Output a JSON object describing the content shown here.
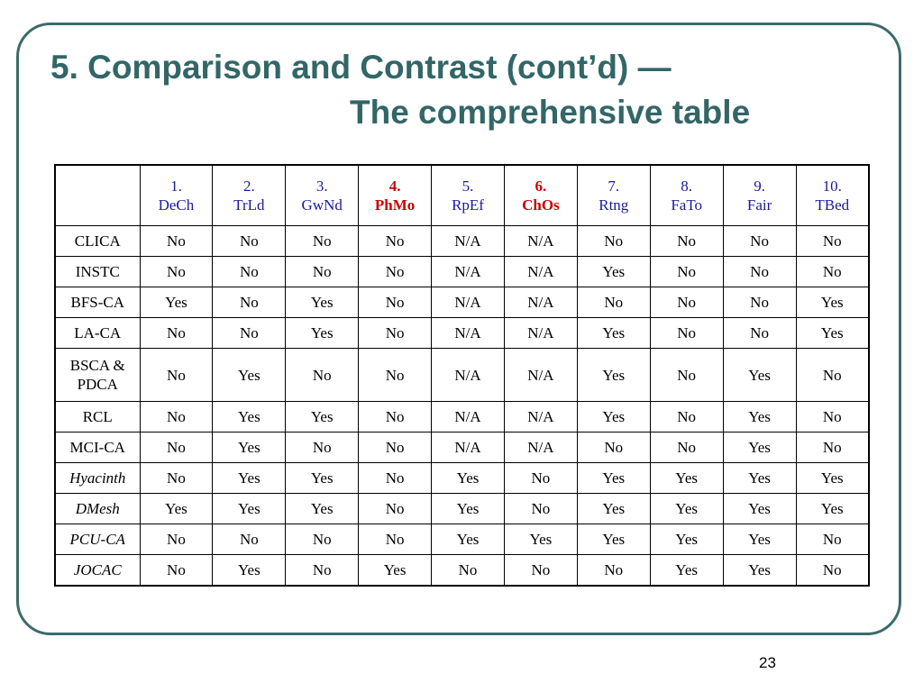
{
  "slide": {
    "title_line1": "5. Comparison and Contrast (cont’d) —",
    "title_line2": "The comprehensive table",
    "page_number": "23"
  },
  "table": {
    "headers": [
      {
        "num": "1.",
        "abbr": "DeCh",
        "highlight": false
      },
      {
        "num": "2.",
        "abbr": "TrLd",
        "highlight": false
      },
      {
        "num": "3.",
        "abbr": "GwNd",
        "highlight": false
      },
      {
        "num": "4.",
        "abbr": "PhMo",
        "highlight": true
      },
      {
        "num": "5.",
        "abbr": "RpEf",
        "highlight": false
      },
      {
        "num": "6.",
        "abbr": "ChOs",
        "highlight": true
      },
      {
        "num": "7.",
        "abbr": "Rtng",
        "highlight": false
      },
      {
        "num": "8.",
        "abbr": "FaTo",
        "highlight": false
      },
      {
        "num": "9.",
        "abbr": "Fair",
        "highlight": false
      },
      {
        "num": "10.",
        "abbr": "TBed",
        "highlight": false
      }
    ],
    "rows": [
      {
        "name": "CLICA",
        "italic": false,
        "values": [
          "No",
          "No",
          "No",
          "No",
          "N/A",
          "N/A",
          "No",
          "No",
          "No",
          "No"
        ]
      },
      {
        "name": "INSTC",
        "italic": false,
        "values": [
          "No",
          "No",
          "No",
          "No",
          "N/A",
          "N/A",
          "Yes",
          "No",
          "No",
          "No"
        ]
      },
      {
        "name": "BFS-CA",
        "italic": false,
        "values": [
          "Yes",
          "No",
          "Yes",
          "No",
          "N/A",
          "N/A",
          "No",
          "No",
          "No",
          "Yes"
        ]
      },
      {
        "name": "LA-CA",
        "italic": false,
        "values": [
          "No",
          "No",
          "Yes",
          "No",
          "N/A",
          "N/A",
          "Yes",
          "No",
          "No",
          "Yes"
        ]
      },
      {
        "name": "BSCA & PDCA",
        "name_line1": "BSCA &",
        "name_line2": "PDCA",
        "italic": false,
        "values": [
          "No",
          "Yes",
          "No",
          "No",
          "N/A",
          "N/A",
          "Yes",
          "No",
          "Yes",
          "No"
        ]
      },
      {
        "name": "RCL",
        "italic": false,
        "values": [
          "No",
          "Yes",
          "Yes",
          "No",
          "N/A",
          "N/A",
          "Yes",
          "No",
          "Yes",
          "No"
        ]
      },
      {
        "name": "MCI-CA",
        "italic": false,
        "values": [
          "No",
          "Yes",
          "No",
          "No",
          "N/A",
          "N/A",
          "No",
          "No",
          "Yes",
          "No"
        ]
      },
      {
        "name": "Hyacinth",
        "italic": true,
        "values": [
          "No",
          "Yes",
          "Yes",
          "No",
          "Yes",
          "No",
          "Yes",
          "Yes",
          "Yes",
          "Yes"
        ]
      },
      {
        "name": "DMesh",
        "italic": true,
        "values": [
          "Yes",
          "Yes",
          "Yes",
          "No",
          "Yes",
          "No",
          "Yes",
          "Yes",
          "Yes",
          "Yes"
        ]
      },
      {
        "name": "PCU-CA",
        "italic": true,
        "values": [
          "No",
          "No",
          "No",
          "No",
          "Yes",
          "Yes",
          "Yes",
          "Yes",
          "Yes",
          "No"
        ]
      },
      {
        "name": "JOCAC",
        "italic": true,
        "values": [
          "No",
          "Yes",
          "No",
          "Yes",
          "No",
          "No",
          "No",
          "Yes",
          "Yes",
          "No"
        ]
      }
    ]
  }
}
